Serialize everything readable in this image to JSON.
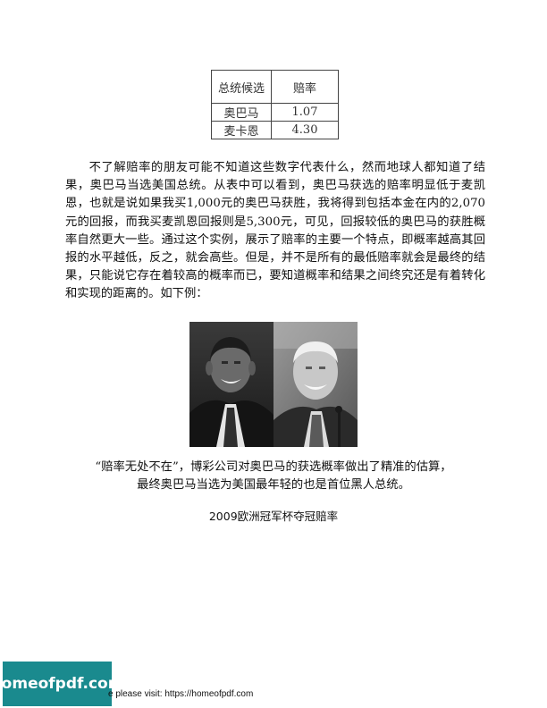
{
  "odds_table": {
    "headers": [
      "总统候选",
      "赔率"
    ],
    "rows": [
      [
        "奥巴马",
        "1.07"
      ],
      [
        "麦卡恩",
        "4.30"
      ]
    ]
  },
  "body_paragraph": "不了解赔率的朋友可能不知道这些数字代表什么，然而地球人都知道了结果，奥巴马当选美国总统。从表中可以看到，奥巴马获选的赔率明显低于麦凯恩，也就是说如果我买1,000元的奥巴马获胜，我将得到包括本金在内的2,070元的回报，而我买麦凯恩回报则是5,300元，可见，回报较低的奥巴马的获胜概率自然更大一些。通过这个实例，展示了赔率的主要一个特点，即概率越高其回报的水平越低，反之，就会高些。但是，并不是所有的最低赔率就会是最终的结果，只能说它存在着较高的概率而已，要知道概率和结果之间终究还是有着转化和实现的距离的。如下例：",
  "caption": {
    "line1": "“赔率无处不在”，博彩公司对奥巴马的获选概率做出了精准的估算，",
    "line2": "最终奥巴马当选为美国最年轻的也是首位黑人总统。"
  },
  "section_heading": "2009欧洲冠军杯夺冠赔率",
  "footer": {
    "badge": "homeofpdf.com",
    "text": "e please visit: https://homeofpdf.com"
  }
}
